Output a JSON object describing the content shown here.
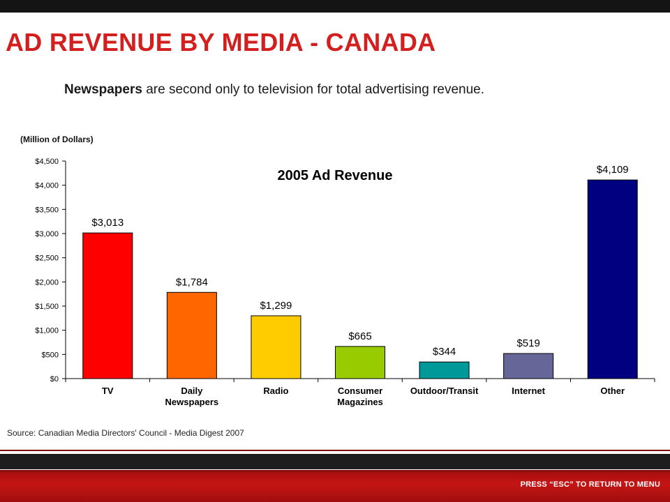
{
  "slide": {
    "title": "AD REVENUE BY MEDIA - CANADA",
    "subtitle_bold": "Newspapers",
    "subtitle_rest": " are second only to television for total advertising revenue.",
    "source": "Source: Canadian Media Directors' Council - Media Digest 2007",
    "footer_hint": "PRESS “ESC” TO RETURN TO MENU"
  },
  "colors": {
    "title": "#d41f1f",
    "footer_red": "#b51212",
    "top_bar": "#141414"
  },
  "chart_data": {
    "type": "bar",
    "title": "2005 Ad Revenue",
    "ylabel": "(Million  of Dollars)",
    "xlabel": "",
    "categories": [
      "TV",
      "Daily\nNewspapers",
      "Radio",
      "Consumer\nMagazines",
      "Outdoor/Transit",
      "Internet",
      "Other"
    ],
    "values": [
      3013,
      1784,
      1299,
      665,
      344,
      519,
      4109
    ],
    "value_labels": [
      "$3,013",
      "$1,784",
      "$1,299",
      "$665",
      "$344",
      "$519",
      "$4,109"
    ],
    "colors": [
      "#ff0000",
      "#ff6600",
      "#ffcc00",
      "#99cc00",
      "#009999",
      "#666699",
      "#000080"
    ],
    "ylim": [
      0,
      4500
    ],
    "yticks": [
      0,
      500,
      1000,
      1500,
      2000,
      2500,
      3000,
      3500,
      4000,
      4500
    ],
    "ytick_labels": [
      "$0",
      "$500",
      "$1,000",
      "$1,500",
      "$2,000",
      "$2,500",
      "$3,000",
      "$3,500",
      "$4,000",
      "$4,500"
    ],
    "grid": false,
    "legend": "none"
  }
}
